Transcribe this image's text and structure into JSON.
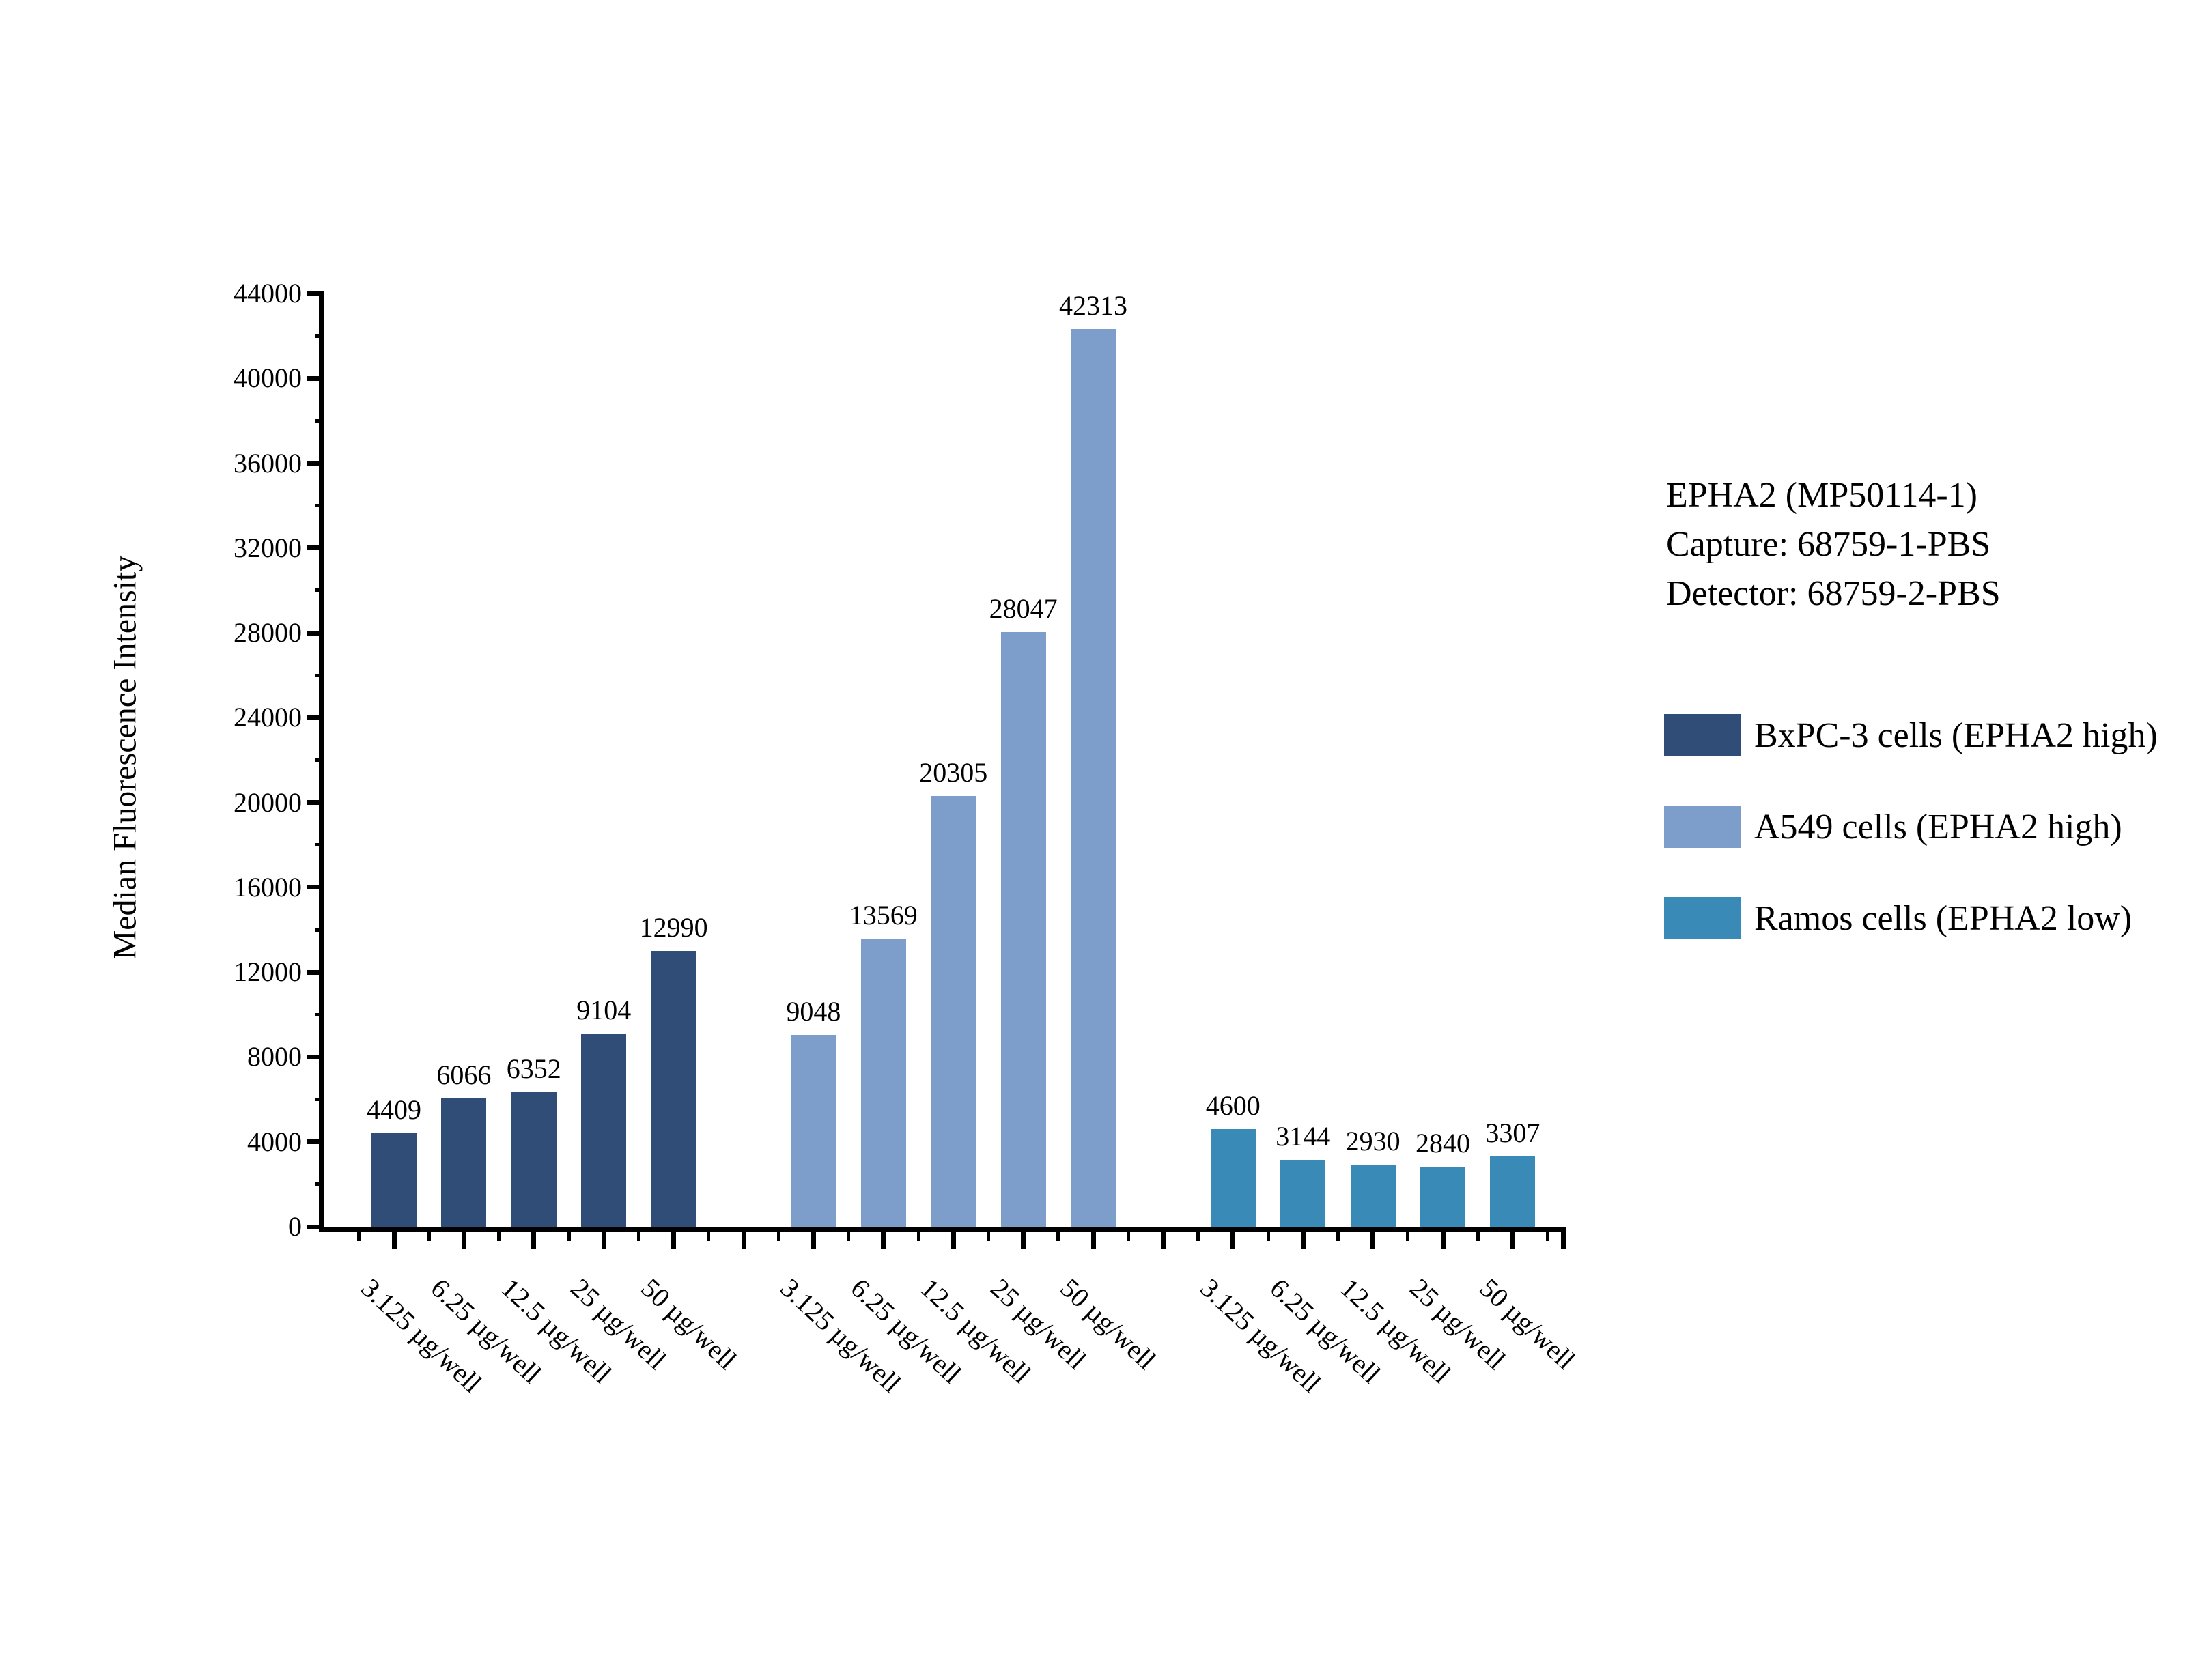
{
  "annotation": {
    "lines": [
      "EPHA2 (MP50114-1)",
      "Capture: 68759-1-PBS",
      "Detector: 68759-2-PBS"
    ]
  },
  "chart_data": {
    "type": "bar",
    "title": "",
    "xlabel": "",
    "ylabel": "Median Fluorescence Intensity",
    "ylim": [
      0,
      44000
    ],
    "y_major_ticks": [
      0,
      4000,
      8000,
      12000,
      16000,
      20000,
      24000,
      28000,
      32000,
      36000,
      40000,
      44000
    ],
    "y_minor_step": 2000,
    "grid": false,
    "legend_position": "right",
    "categories": [
      "3.125 µg/well",
      "6.25 µg/well",
      "12.5 µg/well",
      "25 µg/well",
      "50 µg/well"
    ],
    "series": [
      {
        "name": "BxPC-3 cells (EPHA2 high)",
        "color": "#2F4D76",
        "values": [
          4409,
          6066,
          6352,
          9104,
          12990
        ]
      },
      {
        "name": "A549 cells (EPHA2 high)",
        "color": "#7D9DCA",
        "values": [
          9048,
          13569,
          20305,
          28047,
          42313
        ]
      },
      {
        "name": "Ramos cells (EPHA2 low)",
        "color": "#3A8AB8",
        "values": [
          4600,
          3144,
          2930,
          2840,
          3307
        ]
      }
    ],
    "bar_value_labels": true
  }
}
